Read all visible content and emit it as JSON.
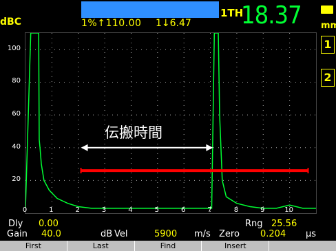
{
  "header": {
    "top_left_tag": "dBC",
    "gate_a_readout": "1%↑110.00",
    "gate_b_readout": "1↓6.47",
    "meas_type": "1TH",
    "meas_value": "18.37",
    "units": "mm",
    "gate_marker_1": "1",
    "gate_marker_2": "2"
  },
  "annotation": "伝搬時間",
  "chart_data": {
    "type": "line",
    "title": "",
    "xlabel": "",
    "ylabel": "",
    "x_ticks": [
      "0",
      "1",
      "2",
      "3",
      "4",
      "5",
      "6",
      "7",
      "8",
      "9",
      "10"
    ],
    "y_ticks": [
      "100",
      "80",
      "60",
      "40",
      "20"
    ],
    "xlim": [
      0,
      11
    ],
    "ylim": [
      0,
      110
    ],
    "series": [
      {
        "color": "#00ff33",
        "x": [
          0.0,
          0.2,
          0.35,
          0.45,
          0.5,
          0.52,
          0.55,
          0.6,
          0.7,
          0.9,
          1.2,
          1.6,
          2.0,
          2.5,
          3.0,
          4.0,
          5.0,
          6.0,
          6.8,
          7.05,
          7.15,
          7.2,
          7.25,
          7.3,
          7.35,
          7.45,
          7.6,
          8.0,
          8.5,
          9.0,
          9.5,
          10.0,
          10.5,
          11.0
        ],
        "y": [
          3,
          110,
          110,
          110,
          110,
          45,
          40,
          30,
          20,
          14,
          9,
          6,
          4,
          3,
          3,
          3,
          3,
          3,
          3,
          3,
          110,
          110,
          110,
          110,
          60,
          20,
          10,
          6,
          4,
          3,
          3,
          5,
          3,
          3
        ]
      }
    ],
    "gate": {
      "x_start": 2.1,
      "x_end": 10.7,
      "y": 26,
      "color": "#ff0000"
    },
    "arrow": {
      "x_start": 2.1,
      "x_end": 7.1,
      "y": 40
    }
  },
  "info": {
    "dly_label": "Dly",
    "dly_value": "0.00",
    "rng_label": "Rng",
    "rng_value": "25.56",
    "gain_label": "Gain",
    "gain_value": "40.0",
    "gain_unit": "dB",
    "vel_label": "Vel",
    "vel_value": "5900",
    "vel_unit": "m/s",
    "zero_label": "Zero",
    "zero_value": "0.204",
    "zero_unit": "µs"
  },
  "softkeys": [
    "First",
    "Last",
    "Find",
    "Insert",
    ""
  ]
}
